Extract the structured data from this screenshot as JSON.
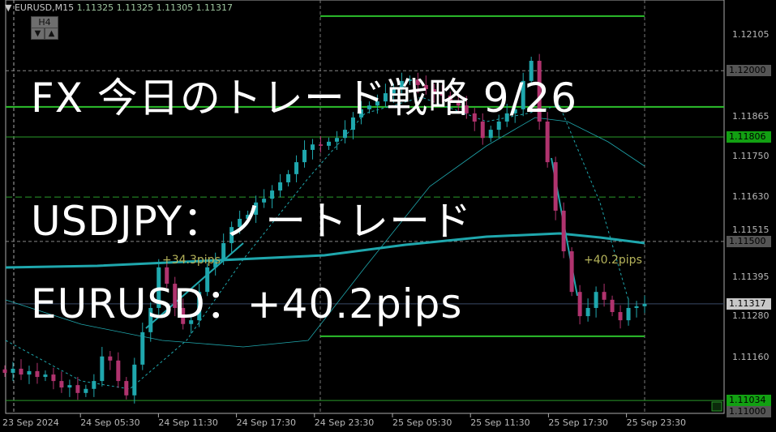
{
  "header": {
    "symbol": "EURUSD,M15",
    "quotes": "1.11325 1.11325 1.11305 1.11317",
    "timeframe_button": "H4",
    "down_arrow": "▼",
    "up_arrow": "▲"
  },
  "overlay": {
    "line1": "FX 今日のトレード戦略 9/26",
    "line2": "USDJPY：ノートレード",
    "line3": "EURUSD：+40.2pips"
  },
  "annotations": {
    "left_pips": "+34.3pips",
    "right_pips": "+40.2pips"
  },
  "colors": {
    "bull": "#1fa7ad",
    "bear": "#b0336e",
    "ma": "#1fa7ad",
    "level": "#2a9a2a",
    "background": "#000000"
  },
  "chart_data": {
    "type": "candlestick",
    "symbol": "EURUSD",
    "timeframe": "M15",
    "ylim": [
      1.10985,
      1.12135
    ],
    "y_ticks": [
      "1.12105",
      "1.11865",
      "1.11750",
      "1.11630",
      "1.11515",
      "1.11395",
      "1.11280",
      "1.11160"
    ],
    "x_ticks": [
      "23 Sep 2024",
      "24 Sep 05:30",
      "24 Sep 11:30",
      "24 Sep 17:30",
      "24 Sep 23:30",
      "25 Sep 05:30",
      "25 Sep 11:30",
      "25 Sep 17:30",
      "25 Sep 23:30"
    ],
    "closes": [
      1.11115,
      1.11127,
      1.1111,
      1.1112,
      1.11103,
      1.1111,
      1.11091,
      1.11072,
      1.11079,
      1.11056,
      1.11068,
      1.11091,
      1.11163,
      1.11151,
      1.11091,
      1.11049,
      1.11139,
      1.11234,
      1.11305,
      1.11424,
      1.11376,
      1.11305,
      1.11258,
      1.11269,
      1.11352,
      1.11424,
      1.11447,
      1.11495,
      1.11542,
      1.11566,
      1.11578,
      1.11614,
      1.11625,
      1.11649,
      1.11673,
      1.11697,
      1.11732,
      1.11768,
      1.11784,
      1.1178,
      1.11792,
      1.11803,
      1.11827,
      1.11863,
      1.11887,
      1.11898,
      1.1191,
      1.11934,
      1.11946,
      1.1197,
      1.11974,
      1.11958,
      1.11946,
      1.11934,
      1.11927,
      1.1191,
      1.11898,
      1.11875,
      1.11851,
      1.11803,
      1.11827,
      1.11851,
      1.11875,
      1.11887,
      1.1197,
      1.12029,
      1.11851,
      1.11732,
      1.1159,
      1.11471,
      1.11352,
      1.11281,
      1.11305,
      1.11352,
      1.11329,
      1.11293,
      1.11269,
      1.11305,
      1.1131,
      1.11317
    ],
    "price_labels": [
      {
        "text": "1.12000",
        "kind": "gray"
      },
      {
        "text": "1.11806",
        "kind": "green"
      },
      {
        "text": "1.11500",
        "kind": "gray"
      },
      {
        "text": "1.11317",
        "kind": "current"
      },
      {
        "text": "1.11034",
        "kind": "green"
      },
      {
        "text": "1.11000",
        "kind": "gray"
      }
    ],
    "levels": {
      "green": [
        1.1216,
        1.11894,
        1.11806,
        1.1163,
        1.11222,
        1.11034
      ],
      "gray_dashed": [
        1.12,
        1.115
      ],
      "current": 1.11317
    }
  }
}
